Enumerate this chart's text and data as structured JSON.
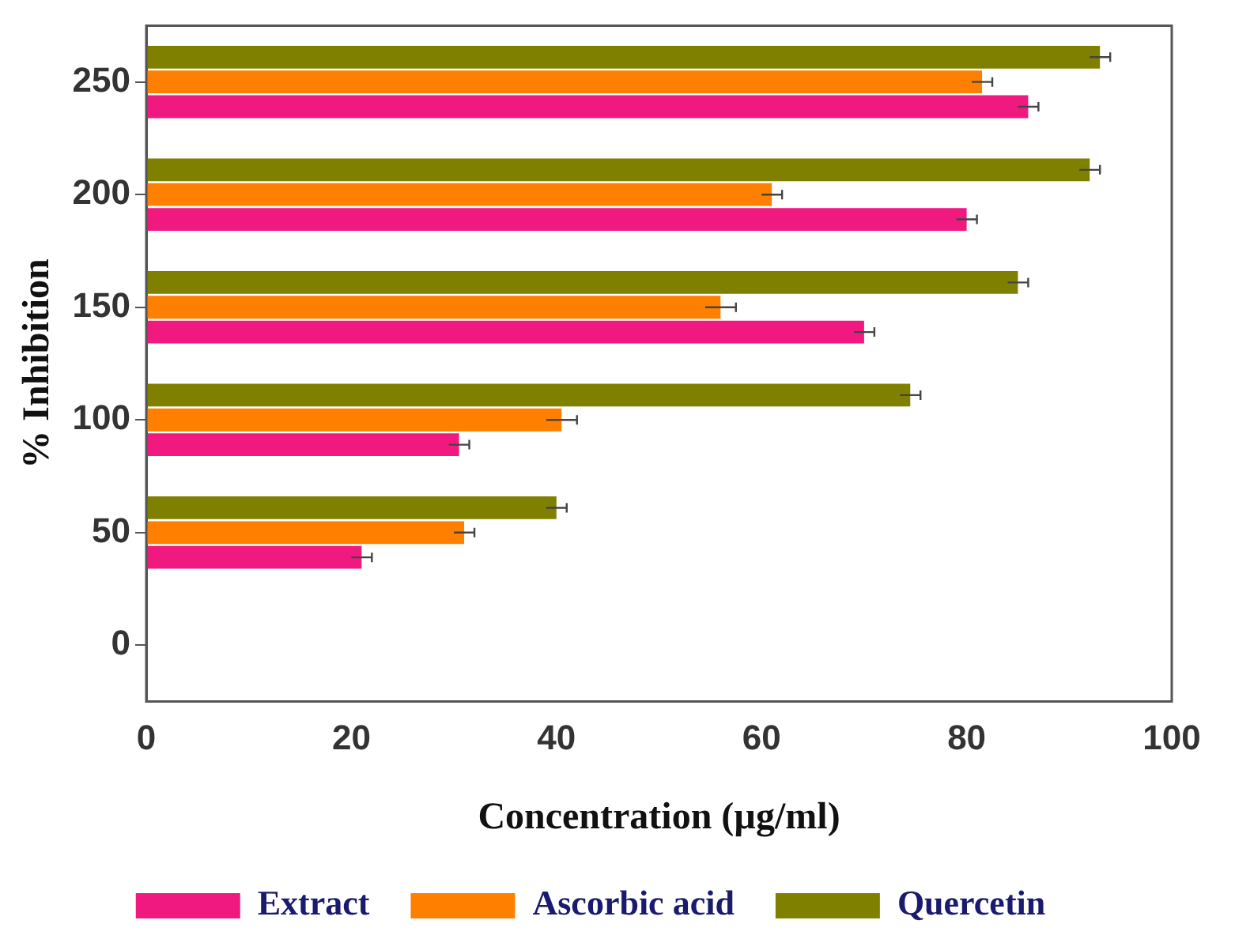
{
  "chart_data": {
    "type": "bar",
    "orientation": "horizontal",
    "xlabel": "Concentration (µg/ml)",
    "ylabel": "% Inhibition",
    "categories": [
      "250",
      "200",
      "150",
      "100",
      "50",
      "0"
    ],
    "series": [
      {
        "name": "Extract",
        "color": "#f0197f",
        "values": [
          86,
          80,
          70,
          30.5,
          21,
          null
        ],
        "errors": [
          1,
          1,
          1,
          1,
          1,
          null
        ]
      },
      {
        "name": "Ascorbic acid",
        "color": "#ff8000",
        "values": [
          81.5,
          61,
          56,
          40.5,
          31,
          null
        ],
        "errors": [
          1,
          1,
          1.5,
          1.5,
          1,
          null
        ]
      },
      {
        "name": "Quercetin",
        "color": "#808000",
        "values": [
          93,
          92,
          85,
          74.5,
          40,
          null
        ],
        "errors": [
          1,
          1,
          1,
          1,
          1,
          null
        ]
      }
    ],
    "xlim": [
      0,
      100
    ],
    "xticks": [
      0,
      20,
      40,
      60,
      80,
      100
    ],
    "grid": false,
    "legend": "bottom"
  }
}
